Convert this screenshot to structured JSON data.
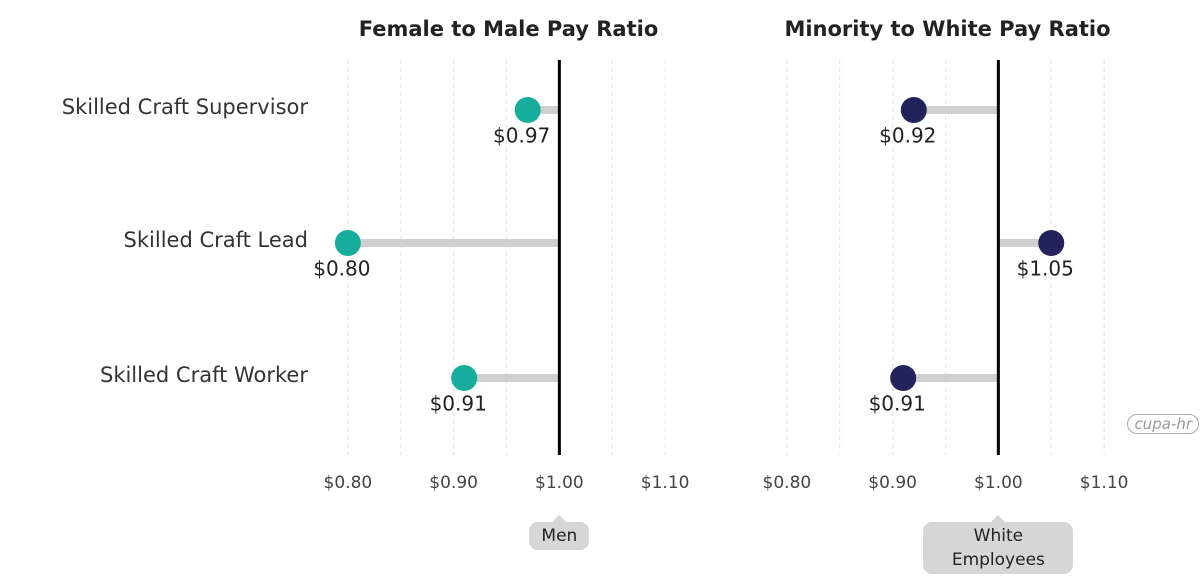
{
  "chart_data": [
    {
      "type": "lollipop",
      "title": "Female to Male Pay Ratio",
      "categories": [
        "Skilled Craft Supervisor",
        "Skilled Craft Lead",
        "Skilled Craft Worker"
      ],
      "values": [
        0.97,
        0.8,
        0.91
      ],
      "value_labels": [
        "$0.97",
        "$0.80",
        "$0.91"
      ],
      "color": "#16ad9c",
      "xlim": [
        0.75,
        1.15
      ],
      "xticks": [
        {
          "value": 0.8,
          "label": "$0.80"
        },
        {
          "value": 0.9,
          "label": "$0.90"
        },
        {
          "value": 1.0,
          "label": "$1.00"
        },
        {
          "value": 1.1,
          "label": "$1.10"
        }
      ],
      "minor_xticks": [
        0.85,
        0.95,
        1.05
      ],
      "reference": {
        "value": 1.0,
        "label": "Men"
      },
      "grid": true
    },
    {
      "type": "lollipop",
      "title": "Minority to White Pay Ratio",
      "values": [
        0.92,
        1.05,
        0.91
      ],
      "value_labels": [
        "$0.92",
        "$1.05",
        "$0.91"
      ],
      "color": "#22235a",
      "xlim": [
        0.75,
        1.15
      ],
      "xticks": [
        {
          "value": 0.8,
          "label": "$0.80"
        },
        {
          "value": 0.9,
          "label": "$0.90"
        },
        {
          "value": 1.0,
          "label": "$1.00"
        },
        {
          "value": 1.1,
          "label": "$1.10"
        }
      ],
      "minor_xticks": [
        0.85,
        0.95,
        1.05
      ],
      "reference": {
        "value": 1.0,
        "label": "White Employees"
      },
      "grid": true
    }
  ],
  "logo": "cupa-hr"
}
